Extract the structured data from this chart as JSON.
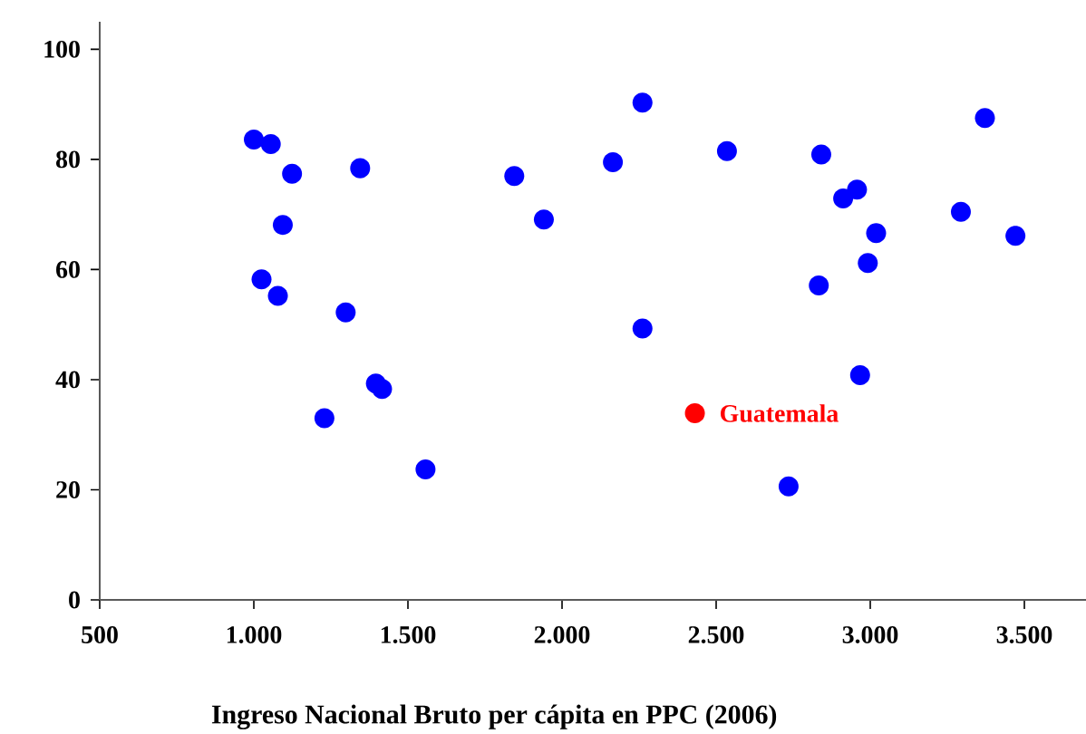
{
  "chart_data": {
    "type": "scatter",
    "xlabel": "Ingreso Nacional Bruto per cápita en PPC (2006)",
    "xlim": [
      500,
      3700
    ],
    "ylim": [
      0,
      105
    ],
    "xticks": [
      500,
      {
        "value": 1000,
        "label": "1.000"
      },
      {
        "value": 1500,
        "label": "1.500"
      },
      {
        "value": 2000,
        "label": "2.000"
      },
      {
        "value": 2500,
        "label": "2.500"
      },
      {
        "value": 3000,
        "label": "3.000"
      },
      {
        "value": 3500,
        "label": "3.500"
      }
    ],
    "yticks": [
      0,
      20,
      40,
      60,
      80,
      100
    ],
    "marker": "circle",
    "grid": false,
    "legend": false,
    "series": [
      {
        "color": "#0000ff",
        "x": [
          1000,
          1055,
          1124,
          1094,
          1025,
          1078,
          1298,
          1345,
          1229,
          1396,
          1416,
          1557,
          1845,
          1941,
          2165,
          2261,
          2535,
          2841,
          2957,
          2912,
          3019,
          2992,
          2833,
          3294,
          3372,
          3471,
          2261,
          2967,
          2735
        ],
        "values": [
          83.6,
          82.8,
          77.4,
          68.1,
          58.2,
          55.2,
          52.2,
          78.4,
          33.0,
          39.3,
          38.3,
          23.7,
          77.0,
          69.1,
          79.5,
          90.3,
          81.5,
          80.9,
          74.5,
          72.9,
          66.6,
          61.2,
          57.1,
          70.5,
          87.5,
          66.1,
          49.3,
          40.8,
          20.6
        ]
      },
      {
        "name": "Guatemala",
        "color": "#ff0000",
        "x": [
          2431
        ],
        "values": [
          33.9
        ]
      }
    ]
  }
}
